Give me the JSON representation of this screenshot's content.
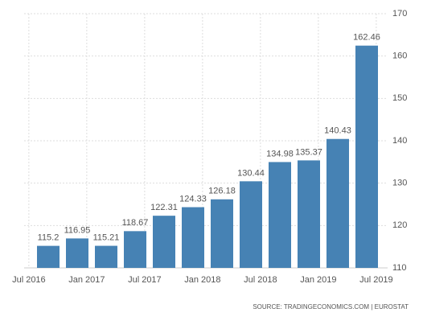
{
  "chart_data": {
    "type": "bar",
    "categories": [
      null,
      null,
      null,
      null,
      null,
      null,
      null,
      null,
      null,
      null,
      null,
      null
    ],
    "values": [
      115.2,
      116.95,
      115.21,
      118.67,
      122.31,
      124.33,
      126.18,
      130.44,
      134.98,
      135.37,
      140.43,
      162.46
    ],
    "color": "#4682b4",
    "xticks": [
      "Jul 2016",
      "Jan 2017",
      "Jul 2017",
      "Jan 2018",
      "Jul 2018",
      "Jan 2019",
      "Jul 2019"
    ],
    "ylim": [
      110,
      170
    ],
    "yticks": [
      110,
      120,
      130,
      140,
      150,
      160,
      170
    ],
    "grid": true,
    "source": "SOURCE: TRADINGECONOMICS.COM | EUROSTAT"
  }
}
